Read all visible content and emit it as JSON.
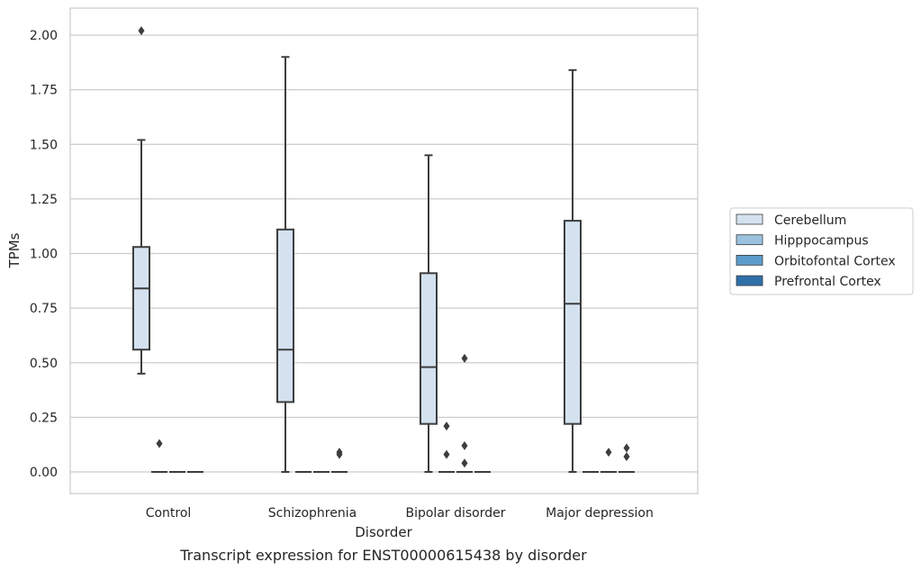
{
  "chart_data": {
    "type": "box",
    "caption": "Transcript expression for ENST00000615438 by disorder",
    "xlabel": "Disorder",
    "ylabel": "TPMs",
    "ylim": [
      -0.1,
      2.12
    ],
    "yticks": [
      0.0,
      0.25,
      0.5,
      0.75,
      1.0,
      1.25,
      1.5,
      1.75,
      2.0
    ],
    "ytick_labels": [
      "0.00",
      "0.25",
      "0.50",
      "0.75",
      "1.00",
      "1.25",
      "1.50",
      "1.75",
      "2.00"
    ],
    "grid": "horizontal",
    "legend_position": "right",
    "categories": [
      "Control",
      "Schizophrenia",
      "Bipolar disorder",
      "Major depression"
    ],
    "series": [
      {
        "name": "Cerebellum",
        "color": "#d4e2f0",
        "boxes": [
          {
            "category": "Control",
            "whisker_low": 0.45,
            "q1": 0.56,
            "median": 0.84,
            "q3": 1.03,
            "whisker_high": 1.52,
            "outliers": [
              2.02
            ]
          },
          {
            "category": "Schizophrenia",
            "whisker_low": 0.0,
            "q1": 0.32,
            "median": 0.56,
            "q3": 1.11,
            "whisker_high": 1.9,
            "outliers": []
          },
          {
            "category": "Bipolar disorder",
            "whisker_low": 0.0,
            "q1": 0.22,
            "median": 0.48,
            "q3": 0.91,
            "whisker_high": 1.45,
            "outliers": []
          },
          {
            "category": "Major depression",
            "whisker_low": 0.0,
            "q1": 0.22,
            "median": 0.77,
            "q3": 1.15,
            "whisker_high": 1.84,
            "outliers": []
          }
        ]
      },
      {
        "name": "Hipppocampus",
        "color": "#9ac1dd",
        "boxes": [
          {
            "category": "Control",
            "whisker_low": 0.0,
            "q1": 0.0,
            "median": 0.0,
            "q3": 0.0,
            "whisker_high": 0.0,
            "outliers": [
              0.13
            ]
          },
          {
            "category": "Schizophrenia",
            "whisker_low": 0.0,
            "q1": 0.0,
            "median": 0.0,
            "q3": 0.0,
            "whisker_high": 0.0,
            "outliers": []
          },
          {
            "category": "Bipolar disorder",
            "whisker_low": 0.0,
            "q1": 0.0,
            "median": 0.0,
            "q3": 0.0,
            "whisker_high": 0.0,
            "outliers": [
              0.21,
              0.08
            ]
          },
          {
            "category": "Major depression",
            "whisker_low": 0.0,
            "q1": 0.0,
            "median": 0.0,
            "q3": 0.0,
            "whisker_high": 0.0,
            "outliers": []
          }
        ]
      },
      {
        "name": "Orbitofontal Cortex",
        "color": "#5a9bc9",
        "boxes": [
          {
            "category": "Control",
            "whisker_low": 0.0,
            "q1": 0.0,
            "median": 0.0,
            "q3": 0.0,
            "whisker_high": 0.0,
            "outliers": []
          },
          {
            "category": "Schizophrenia",
            "whisker_low": 0.0,
            "q1": 0.0,
            "median": 0.0,
            "q3": 0.0,
            "whisker_high": 0.0,
            "outliers": []
          },
          {
            "category": "Bipolar disorder",
            "whisker_low": 0.0,
            "q1": 0.0,
            "median": 0.0,
            "q3": 0.0,
            "whisker_high": 0.0,
            "outliers": [
              0.52,
              0.12,
              0.04
            ]
          },
          {
            "category": "Major depression",
            "whisker_low": 0.0,
            "q1": 0.0,
            "median": 0.0,
            "q3": 0.0,
            "whisker_high": 0.0,
            "outliers": [
              0.09
            ]
          }
        ]
      },
      {
        "name": "Prefrontal Cortex",
        "color": "#2d6fa8",
        "boxes": [
          {
            "category": "Control",
            "whisker_low": 0.0,
            "q1": 0.0,
            "median": 0.0,
            "q3": 0.0,
            "whisker_high": 0.0,
            "outliers": []
          },
          {
            "category": "Schizophrenia",
            "whisker_low": 0.0,
            "q1": 0.0,
            "median": 0.0,
            "q3": 0.0,
            "whisker_high": 0.0,
            "outliers": [
              0.09,
              0.08
            ]
          },
          {
            "category": "Bipolar disorder",
            "whisker_low": 0.0,
            "q1": 0.0,
            "median": 0.0,
            "q3": 0.0,
            "whisker_high": 0.0,
            "outliers": []
          },
          {
            "category": "Major depression",
            "whisker_low": 0.0,
            "q1": 0.0,
            "median": 0.0,
            "q3": 0.0,
            "whisker_high": 0.0,
            "outliers": [
              0.11,
              0.07
            ]
          }
        ]
      }
    ]
  }
}
